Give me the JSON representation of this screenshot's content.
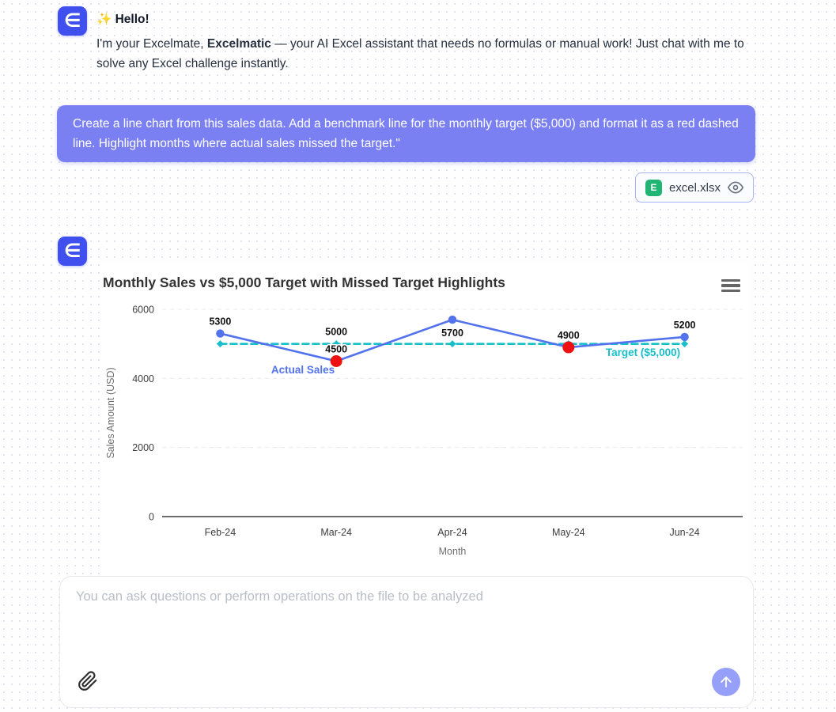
{
  "logo_letter": "∈",
  "assistant_intro": {
    "greeting": "✨ Hello!",
    "intro_part1": "I'm your Excelmate, ",
    "intro_brand": "Excelmatic",
    "intro_part2": " — your AI Excel assistant that needs no formulas or manual work! Just chat with me to solve any Excel challenge instantly."
  },
  "user_message": {
    "text": "Create a line chart from this sales data. Add a benchmark line for the monthly target ($5,000) and format it as a red dashed line. Highlight months where actual sales missed the target.\""
  },
  "attachment": {
    "file_name": "excel.xlsx",
    "file_icon_letter": "E"
  },
  "chart_data": {
    "type": "line",
    "title": "Monthly Sales vs $5,000 Target with Missed Target Highlights",
    "categories": [
      "Feb-24",
      "Mar-24",
      "Apr-24",
      "May-24",
      "Jun-24"
    ],
    "series": [
      {
        "name": "Target ($5,000)",
        "values": [
          5000,
          5000,
          5000,
          5000,
          5000
        ],
        "color": "#16bfca",
        "dashed": true,
        "marker": "diamond",
        "data_label_index": 1,
        "name_label_pos": {
          "x": 685,
          "y": 72
        }
      },
      {
        "name": "Actual Sales",
        "values": [
          5300,
          4500,
          5700,
          4900,
          5200
        ],
        "color": "#5272ee",
        "marker": "circle",
        "missed": [
          false,
          true,
          false,
          true,
          false
        ],
        "missed_color": "#ee1111",
        "label_positions": [
          "above",
          "above",
          "below",
          "above",
          "above"
        ],
        "name_label_pos": {
          "x": 255,
          "y": 94
        }
      }
    ],
    "xlabel": "Month",
    "ylabel": "Sales Amount (USD)",
    "ylim": [
      0,
      6000
    ],
    "yticks": [
      0,
      2000,
      4000,
      6000
    ],
    "grid": "dashed",
    "legend_position": "inline-series-labels"
  },
  "input_area": {
    "placeholder": "You can ask questions or perform operations on the file to be analyzed"
  },
  "colors": {
    "brand": "#4050ef",
    "user_bubble": "#7a80f2",
    "send_button": "#97a0f8",
    "file_icon_green": "#21b573",
    "actual_series": "#5272ee",
    "target_series": "#16bfca",
    "missed_point": "#ee1111"
  }
}
